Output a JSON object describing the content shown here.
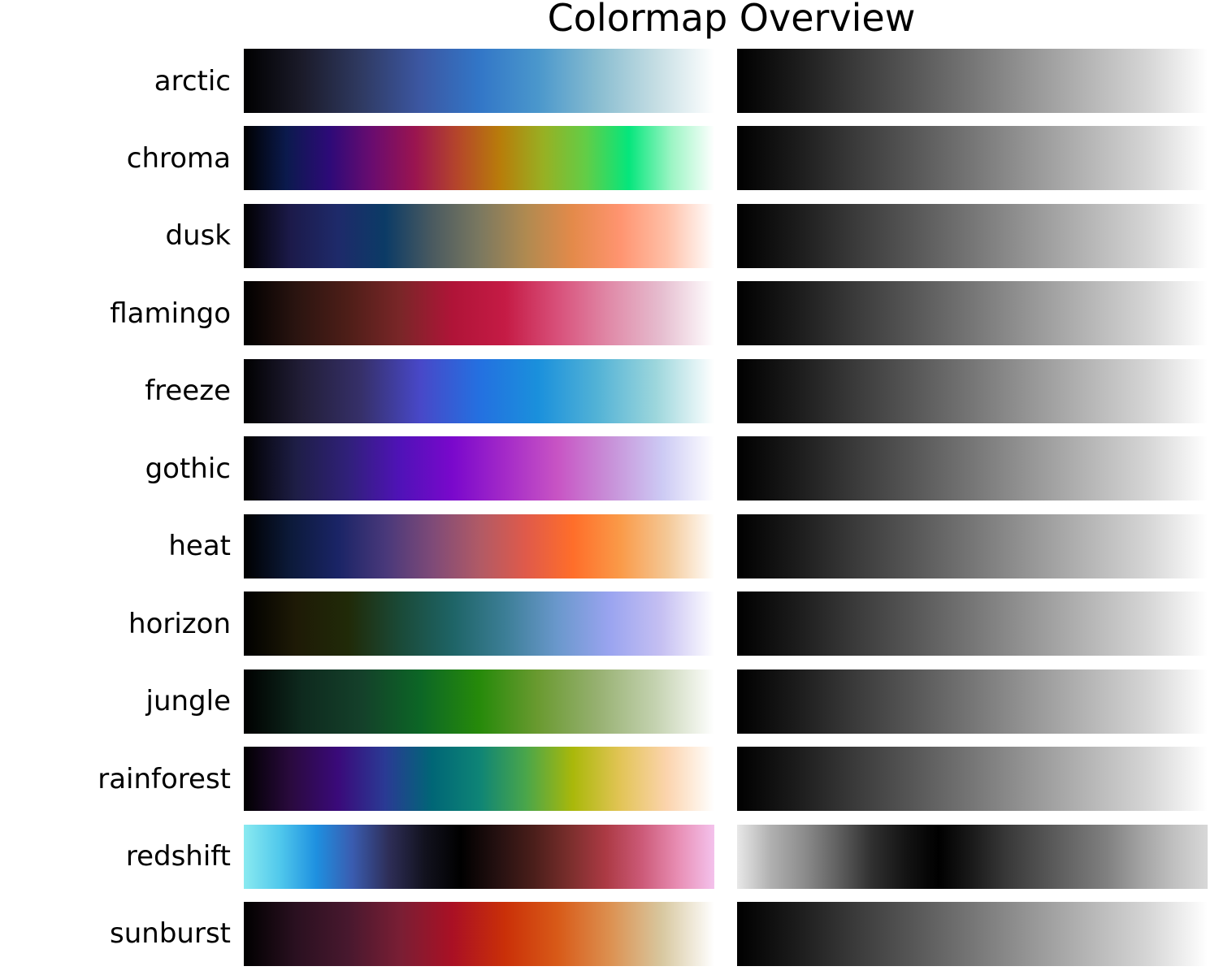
{
  "title": "Colormap Overview",
  "chart_data": {
    "type": "heatmap",
    "title": "Colormap Overview",
    "panels": [
      "color",
      "grayscale"
    ],
    "colormaps": [
      {
        "name": "arctic",
        "colors": [
          "#000000",
          "#1b1b2a",
          "#2f3a62",
          "#3c57a2",
          "#3276c7",
          "#4a97cc",
          "#87bcd0",
          "#c4dde3",
          "#ffffff"
        ],
        "gray": [
          "#000000",
          "#1b1b1b",
          "#3a3a3a",
          "#575757",
          "#767676",
          "#969696",
          "#b6b6b6",
          "#d6d6d6",
          "#ffffff"
        ]
      },
      {
        "name": "chroma",
        "colors": [
          "#000000",
          "#0b1a4d",
          "#2d0a78",
          "#6a0c6f",
          "#9a1450",
          "#b5462a",
          "#b87d0a",
          "#98b023",
          "#62cd47",
          "#05e67c",
          "#9cf5c4",
          "#ffffff"
        ],
        "gray": [
          "#000000",
          "#1b1b1b",
          "#3a3a3a",
          "#575757",
          "#767676",
          "#969696",
          "#b6b6b6",
          "#d6d6d6",
          "#ffffff"
        ]
      },
      {
        "name": "dusk",
        "colors": [
          "#000000",
          "#1c1a4a",
          "#1e2a6a",
          "#0b3b66",
          "#4a5a60",
          "#7a7860",
          "#b08a50",
          "#e48a4a",
          "#ff9470",
          "#ffc0a8",
          "#ffffff"
        ],
        "gray": [
          "#000000",
          "#1b1b1b",
          "#3a3a3a",
          "#575757",
          "#767676",
          "#969696",
          "#b6b6b6",
          "#d6d6d6",
          "#ffffff"
        ]
      },
      {
        "name": "flamingo",
        "colors": [
          "#000000",
          "#2a1410",
          "#4e1e18",
          "#7a2628",
          "#b01438",
          "#c51b45",
          "#d8507a",
          "#e08aa8",
          "#e6bed0",
          "#ffffff"
        ],
        "gray": [
          "#000000",
          "#1b1b1b",
          "#3a3a3a",
          "#575757",
          "#767676",
          "#969696",
          "#b6b6b6",
          "#d6d6d6",
          "#ffffff"
        ]
      },
      {
        "name": "freeze",
        "colors": [
          "#000000",
          "#221e38",
          "#36306a",
          "#4848c8",
          "#2470e0",
          "#1a90dc",
          "#52b2d6",
          "#9cd6dc",
          "#ffffff"
        ],
        "gray": [
          "#000000",
          "#1b1b1b",
          "#3a3a3a",
          "#575757",
          "#767676",
          "#969696",
          "#b6b6b6",
          "#d6d6d6",
          "#ffffff"
        ]
      },
      {
        "name": "gothic",
        "colors": [
          "#000000",
          "#1e1e46",
          "#30207a",
          "#5012b8",
          "#7a08cc",
          "#a42ac8",
          "#c854c4",
          "#c890d8",
          "#cccaf4",
          "#ffffff"
        ],
        "gray": [
          "#000000",
          "#1b1b1b",
          "#3a3a3a",
          "#575757",
          "#767676",
          "#969696",
          "#b6b6b6",
          "#d6d6d6",
          "#ffffff"
        ]
      },
      {
        "name": "heat",
        "colors": [
          "#000000",
          "#0c1a3a",
          "#1a2466",
          "#48387a",
          "#7e4a78",
          "#b05a66",
          "#e05a4a",
          "#ff6e2a",
          "#fa9a48",
          "#f4c896",
          "#ffffff"
        ],
        "gray": [
          "#000000",
          "#1b1b1b",
          "#3a3a3a",
          "#575757",
          "#767676",
          "#969696",
          "#b6b6b6",
          "#d6d6d6",
          "#ffffff"
        ]
      },
      {
        "name": "horizon",
        "colors": [
          "#000000",
          "#1e1a06",
          "#202a08",
          "#1a4a38",
          "#1e6466",
          "#3c7e96",
          "#6a98cc",
          "#9aa4f0",
          "#c6c0f2",
          "#ffffff"
        ],
        "gray": [
          "#000000",
          "#1b1b1b",
          "#3a3a3a",
          "#575757",
          "#767676",
          "#969696",
          "#b6b6b6",
          "#d6d6d6",
          "#ffffff"
        ]
      },
      {
        "name": "jungle",
        "colors": [
          "#000000",
          "#0e2a1e",
          "#14402a",
          "#0c6626",
          "#268a0a",
          "#6a9a30",
          "#96b070",
          "#c4d2b0",
          "#ffffff"
        ],
        "gray": [
          "#000000",
          "#1b1b1b",
          "#3a3a3a",
          "#575757",
          "#767676",
          "#969696",
          "#b6b6b6",
          "#d6d6d6",
          "#ffffff"
        ]
      },
      {
        "name": "rainforest",
        "colors": [
          "#000000",
          "#2a0a3e",
          "#3a0a7a",
          "#2a3a94",
          "#006676",
          "#0e8476",
          "#4aa64a",
          "#aab80a",
          "#e2c456",
          "#fcd4ae",
          "#ffffff"
        ],
        "gray": [
          "#000000",
          "#1b1b1b",
          "#3a3a3a",
          "#575757",
          "#767676",
          "#969696",
          "#b6b6b6",
          "#d6d6d6",
          "#ffffff"
        ]
      },
      {
        "name": "redshift",
        "colors": [
          "#8aeaf0",
          "#50c8ec",
          "#1e90e0",
          "#3a5cb0",
          "#2e2e58",
          "#12121e",
          "#000000",
          "#241010",
          "#4a1e1a",
          "#7a2e2c",
          "#ac3a44",
          "#cc5a78",
          "#e88eb4",
          "#f4c2ec"
        ],
        "gray": [
          "#e8e8e8",
          "#b0b0b0",
          "#8c8c8c",
          "#606060",
          "#303030",
          "#141414",
          "#000000",
          "#1a1a1a",
          "#383838",
          "#505050",
          "#686868",
          "#808080",
          "#a2a2a2",
          "#c0c0c0",
          "#d8d8d8"
        ]
      },
      {
        "name": "sunburst",
        "colors": [
          "#000000",
          "#2a1020",
          "#48182e",
          "#7a1e34",
          "#aa1024",
          "#ca3008",
          "#d85a18",
          "#dc9050",
          "#d8c8a0",
          "#ffffff"
        ],
        "gray": [
          "#000000",
          "#1b1b1b",
          "#3a3a3a",
          "#575757",
          "#767676",
          "#969696",
          "#b6b6b6",
          "#d6d6d6",
          "#ffffff"
        ]
      }
    ]
  }
}
